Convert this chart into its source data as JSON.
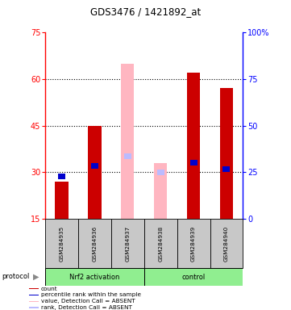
{
  "title": "GDS3476 / 1421892_at",
  "samples": [
    "GSM284935",
    "GSM284936",
    "GSM284937",
    "GSM284938",
    "GSM284939",
    "GSM284940"
  ],
  "ylim_left": [
    15,
    75
  ],
  "ylim_right": [
    0,
    100
  ],
  "yticks_left": [
    15,
    30,
    45,
    60,
    75
  ],
  "yticks_right": [
    0,
    25,
    50,
    75,
    100
  ],
  "red_bar_color": "#CC0000",
  "pink_bar_color": "#FFB6C1",
  "blue_marker_color": "#0000CC",
  "lavender_marker_color": "#BBBBFF",
  "count_values": [
    27,
    45,
    15,
    15,
    62,
    57
  ],
  "rank_values": [
    28.5,
    32,
    15,
    15,
    33,
    31
  ],
  "absent_value_values": [
    15,
    15,
    65,
    33,
    15,
    15
  ],
  "absent_rank_values": [
    15,
    15,
    35,
    30,
    15,
    15
  ],
  "is_absent": [
    false,
    false,
    true,
    true,
    false,
    false
  ],
  "grid_yticks": [
    30,
    45,
    60
  ],
  "bar_width": 0.4,
  "sample_box_color": "#C8C8C8",
  "group_box_color": "#90EE90"
}
